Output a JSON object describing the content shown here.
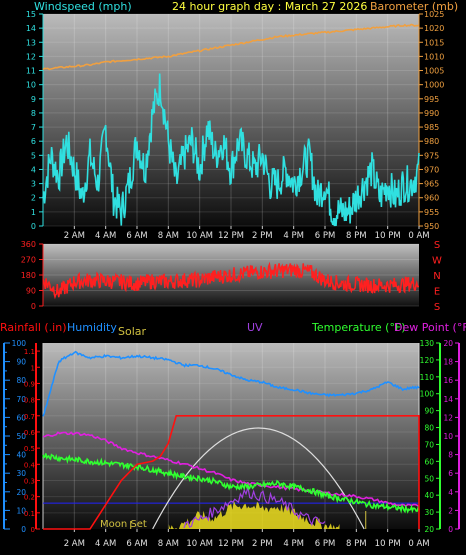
{
  "header": {
    "wind_label": "Windspeed (mph)",
    "title": "24 hour graph day : March 27 2026",
    "baro_label": "Barometer (mb)"
  },
  "panel3_labels": {
    "rain": "Rainfall (.in)",
    "humidity": "Humidity",
    "solar": "Solar",
    "uv": "UV",
    "temp": "Temperature (°F)",
    "dew": "Dew Point (°F)",
    "moon_set": "Moon Set"
  },
  "colors": {
    "wind": "#30e0e0",
    "baro": "#f0a040",
    "dir": "#ff2020",
    "rain": "#ff1010",
    "humidity": "#2090ff",
    "solar": "#f0e020",
    "uv": "#a040e0",
    "temp": "#30ff30",
    "dew": "#e020e0",
    "title": "#ffff40"
  },
  "chart_data": [
    {
      "type": "line",
      "title": "24 hour graph day : March 27 2026",
      "x_ticks": [
        "2 AM",
        "4 AM",
        "6 AM",
        "8 AM",
        "10 AM",
        "12 PM",
        "2 PM",
        "4 PM",
        "6 PM",
        "8 PM",
        "10 PM",
        "0 AM"
      ],
      "hours_range": [
        0,
        24
      ],
      "series": [
        {
          "name": "Windspeed (mph)",
          "axis": "left",
          "ylim": [
            0,
            15
          ],
          "x": [
            0,
            0.5,
            1,
            1.5,
            2,
            2.5,
            3,
            3.5,
            4,
            4.5,
            5,
            5.5,
            6,
            6.5,
            7,
            7.5,
            8,
            8.5,
            9,
            9.5,
            10,
            10.5,
            11,
            11.5,
            12,
            12.5,
            13,
            13.5,
            14,
            14.5,
            15,
            15.5,
            16,
            16.5,
            17,
            17.5,
            18,
            18.5,
            19,
            19.5,
            20,
            20.5,
            21,
            21.5,
            22,
            22.5,
            23,
            23.5,
            24
          ],
          "values": [
            2,
            5,
            3.5,
            6,
            4,
            2,
            5,
            3,
            7,
            2,
            1,
            3,
            6,
            4,
            8,
            10,
            6,
            3,
            5,
            6,
            4,
            7,
            5,
            6,
            4,
            6,
            5,
            4,
            5,
            3,
            3,
            4,
            3,
            4,
            5,
            2,
            3,
            1,
            1,
            1,
            2,
            3,
            4,
            2,
            3,
            2,
            3,
            3,
            4
          ]
        },
        {
          "name": "Barometer (mb)",
          "axis": "right",
          "ylim": [
            950,
            1025
          ],
          "x": [
            0,
            1,
            2,
            3,
            4,
            5,
            6,
            7,
            8,
            9,
            10,
            11,
            12,
            13,
            14,
            15,
            16,
            17,
            18,
            19,
            20,
            21,
            22,
            23,
            24
          ],
          "values": [
            1005.5,
            1006,
            1006.5,
            1007,
            1008,
            1008.5,
            1009,
            1009.5,
            1010,
            1011,
            1012,
            1013,
            1014,
            1015,
            1016,
            1017,
            1017.5,
            1018,
            1018.5,
            1019,
            1019.5,
            1020,
            1020.5,
            1021,
            1021
          ]
        }
      ],
      "y_ticks_left": [
        0,
        1,
        2,
        3,
        4,
        5,
        6,
        7,
        8,
        9,
        10,
        11,
        12,
        13,
        14,
        15
      ],
      "y_ticks_right": [
        950,
        955,
        960,
        965,
        970,
        975,
        980,
        985,
        990,
        995,
        1000,
        1005,
        1010,
        1015,
        1020,
        1025
      ]
    },
    {
      "type": "line",
      "x_ticks": [
        "2 AM",
        "4 AM",
        "6 AM",
        "8 AM",
        "10 AM",
        "12 PM",
        "2 PM",
        "4 PM",
        "6 PM",
        "8 PM",
        "10 PM",
        "0 AM"
      ],
      "series": [
        {
          "name": "Wind direction",
          "ylim": [
            0,
            360
          ],
          "x": [
            0,
            1,
            2,
            3,
            4,
            5,
            6,
            7,
            8,
            9,
            10,
            11,
            12,
            13,
            14,
            15,
            16,
            17,
            18,
            19,
            20,
            21,
            22,
            23,
            24
          ],
          "values": [
            150,
            80,
            140,
            150,
            145,
            140,
            130,
            145,
            140,
            150,
            150,
            170,
            180,
            190,
            200,
            205,
            210,
            200,
            150,
            130,
            125,
            120,
            120,
            125,
            135
          ]
        }
      ],
      "y_ticks_left": [
        0,
        90,
        180,
        270,
        360
      ],
      "y_ticks_right": [
        "S",
        "E",
        "N",
        "W",
        "S"
      ]
    },
    {
      "type": "line",
      "x_ticks": [
        "2 AM",
        "4 AM",
        "6 AM",
        "8 AM",
        "10 AM",
        "12 PM",
        "2 PM",
        "4 PM",
        "6 PM",
        "8 PM",
        "10 PM",
        "0 AM"
      ],
      "series": [
        {
          "name": "Humidity",
          "ylim": [
            0,
            100
          ],
          "x": [
            0,
            0.5,
            1,
            2,
            3,
            4,
            5,
            6,
            7,
            8,
            9,
            10,
            11,
            12,
            13,
            14,
            15,
            16,
            17,
            18,
            19,
            20,
            21,
            22,
            23,
            23.5,
            24
          ],
          "values": [
            60,
            75,
            90,
            95,
            92,
            93,
            92,
            93,
            92,
            91,
            88,
            88,
            86,
            83,
            80,
            79,
            76,
            75,
            73,
            72,
            72,
            73,
            75,
            79,
            75,
            76,
            76
          ]
        },
        {
          "name": "Rainfall (.in)",
          "ylim": [
            0,
            1.15
          ],
          "x": [
            0,
            3,
            4,
            5,
            6,
            7,
            7.5,
            8,
            8.5,
            24
          ],
          "values": [
            0,
            0,
            0.15,
            0.3,
            0.4,
            0.42,
            0.45,
            0.53,
            0.7,
            0.7
          ]
        },
        {
          "name": "Temperature (°F)",
          "ylim": [
            20,
            130
          ],
          "x": [
            0,
            1,
            2,
            3,
            4,
            5,
            6,
            7,
            8,
            9,
            10,
            11,
            12,
            13,
            14,
            15,
            16,
            17,
            18,
            19,
            20,
            21,
            22,
            23,
            24
          ],
          "values": [
            64,
            62,
            61,
            60,
            59,
            58,
            57,
            55,
            53,
            51,
            50,
            48,
            45,
            45,
            46,
            47,
            45,
            43,
            40,
            38,
            36,
            34,
            33,
            32,
            31
          ]
        },
        {
          "name": "Dew Point (°F)",
          "ylim": [
            0,
            20
          ],
          "x": [
            0,
            1,
            2,
            3,
            4,
            5,
            6,
            7,
            8,
            9,
            10,
            11,
            12,
            13,
            14,
            15,
            16,
            17,
            18,
            19,
            20,
            21,
            22,
            23,
            24
          ],
          "values": [
            9.9,
            10.3,
            10.3,
            10.1,
            9.5,
            8.7,
            8.2,
            7.8,
            7.4,
            7,
            6.5,
            6,
            5.3,
            4.9,
            4.7,
            4.5,
            4.3,
            4.1,
            3.9,
            3.7,
            3.5,
            3.2,
            2.8,
            2.5,
            2.5
          ]
        },
        {
          "name": "Solar",
          "ylim": [
            0,
            1
          ],
          "x": [
            8,
            9,
            10,
            11,
            12,
            13,
            14,
            15,
            16,
            17,
            18,
            19
          ],
          "values": [
            0,
            0.05,
            0.12,
            0.1,
            0.2,
            0.22,
            0.18,
            0.2,
            0.15,
            0.08,
            0.03,
            0
          ]
        },
        {
          "name": "UV",
          "ylim": [
            0,
            20
          ],
          "x": [
            9,
            10,
            11,
            12,
            13,
            14,
            15,
            16,
            17,
            18
          ],
          "values": [
            0.5,
            1,
            2,
            3,
            4,
            3.5,
            3,
            2,
            1,
            0.5
          ]
        }
      ],
      "y_ticks_left_rain": [
        0,
        0.1,
        0.2,
        0.3,
        0.4,
        0.5,
        0.6,
        0.7,
        0.8,
        0.9,
        1,
        1.1
      ],
      "y_ticks_left_humidity": [
        0,
        5,
        10,
        15,
        20,
        25,
        30,
        35,
        40,
        45,
        50,
        55,
        60,
        65,
        70,
        75,
        80,
        85,
        90,
        95,
        100
      ],
      "y_ticks_right_temp": [
        20,
        30,
        40,
        50,
        60,
        70,
        80,
        90,
        100,
        110,
        120,
        130
      ],
      "y_ticks_right_dew": [
        0,
        2,
        4,
        6,
        8,
        10,
        12,
        14,
        16,
        18,
        20
      ]
    }
  ]
}
